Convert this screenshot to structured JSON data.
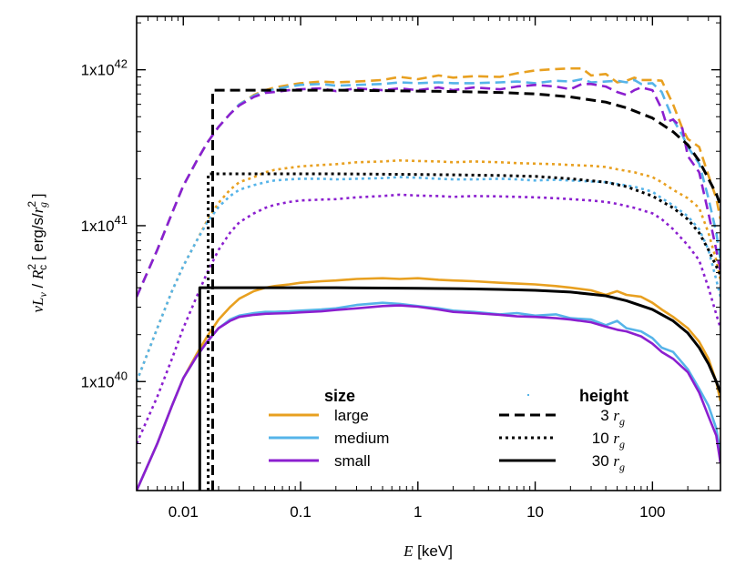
{
  "chart_data": {
    "type": "line",
    "xlabel": {
      "italic": "E",
      "rest": " [keV]"
    },
    "ylabel": {
      "nu": "ν",
      "L": "L",
      "Lsub": "ν",
      "slash": " / ",
      "R": "R",
      "Rsup": "2",
      "Rsub": "c",
      "bracket_open": "  [ erg/s/",
      "r": "r",
      "rsup": "2",
      "rsub": "g",
      "bracket_close": " ]"
    },
    "xscale": "log",
    "yscale": "log",
    "xlim": [
      0.004,
      380
    ],
    "ylim": [
      2e+39,
      2.2e+42
    ],
    "x_ticks": [
      {
        "value": 0.01,
        "label": "0.01"
      },
      {
        "value": 0.1,
        "label": "0.1"
      },
      {
        "value": 1,
        "label": "1"
      },
      {
        "value": 10,
        "label": "10"
      },
      {
        "value": 100,
        "label": "100"
      }
    ],
    "y_ticks": [
      {
        "value": 1e+40,
        "base": "1x10",
        "exp": "40"
      },
      {
        "value": 1e+41,
        "base": "1x10",
        "exp": "41"
      },
      {
        "value": 1e+42,
        "base": "1x10",
        "exp": "42"
      }
    ],
    "grid": false,
    "legend": {
      "placement": "bottom-center",
      "size_title": "size",
      "height_title": "height",
      "size_items": [
        {
          "label": "large",
          "color": "#e8a020"
        },
        {
          "label": "medium",
          "color": "#56b4e9"
        },
        {
          "label": "small",
          "color": "#8b1fcf"
        }
      ],
      "height_items": [
        {
          "num": "3",
          "r": "r",
          "sub": "g",
          "dash": "dashed"
        },
        {
          "num": "10",
          "r": "r",
          "sub": "g",
          "dash": "dotted"
        },
        {
          "num": "30",
          "r": "r",
          "sub": "g",
          "dash": "solid"
        }
      ]
    },
    "series": [
      {
        "size": "large",
        "height": "3 rg",
        "color": "#e8a020",
        "dash": "dashed",
        "x": [
          0.004,
          0.006,
          0.008,
          0.01,
          0.013,
          0.016,
          0.02,
          0.025,
          0.03,
          0.04,
          0.05,
          0.06,
          0.08,
          0.1,
          0.15,
          0.2,
          0.3,
          0.5,
          0.7,
          1,
          1.5,
          2,
          3,
          5,
          7,
          10,
          15,
          20,
          25,
          30,
          40,
          50,
          60,
          70,
          80,
          100,
          120,
          130,
          150,
          180,
          200,
          250,
          300,
          350,
          380
        ],
        "y": [
          3.5e+40,
          7e+40,
          1.2e+41,
          1.8e+41,
          2.6e+41,
          3.4e+41,
          4.3e+41,
          5.2e+41,
          6e+41,
          6.9e+41,
          7.4e+41,
          7.7e+41,
          8e+41,
          8.2e+41,
          8.4e+41,
          8.3e+41,
          8.4e+41,
          8.6e+41,
          9e+41,
          8.7e+41,
          9.2e+41,
          8.9e+41,
          9.1e+41,
          9e+41,
          9.5e+41,
          9.9e+41,
          1.01e+42,
          1.02e+42,
          1.02e+42,
          9.2e+41,
          9.4e+41,
          8.3e+41,
          8.5e+41,
          8.9e+41,
          8.6e+41,
          8.6e+41,
          8.5e+41,
          7.5e+41,
          6e+41,
          4.2e+41,
          3.6e+41,
          3.2e+41,
          2.1e+41,
          1.5e+41,
          1.1e+41
        ]
      },
      {
        "size": "medium",
        "height": "3 rg",
        "color": "#56b4e9",
        "dash": "dashed",
        "x": [
          0.004,
          0.006,
          0.008,
          0.01,
          0.013,
          0.016,
          0.02,
          0.025,
          0.03,
          0.04,
          0.05,
          0.06,
          0.08,
          0.1,
          0.15,
          0.2,
          0.3,
          0.5,
          0.7,
          1,
          1.5,
          2,
          3,
          5,
          7,
          10,
          15,
          20,
          25,
          30,
          40,
          50,
          60,
          70,
          80,
          100,
          120,
          130,
          150,
          180,
          200,
          250,
          300,
          350,
          380
        ],
        "y": [
          3.5e+40,
          7e+40,
          1.2e+41,
          1.8e+41,
          2.6e+41,
          3.4e+41,
          4.3e+41,
          5.2e+41,
          6e+41,
          6.8e+41,
          7.3e+41,
          7.5e+41,
          7.8e+41,
          8e+41,
          8.1e+41,
          7.9e+41,
          8e+41,
          8.1e+41,
          8.3e+41,
          8.2e+41,
          8.3e+41,
          8.2e+41,
          8.2e+41,
          8.3e+41,
          8.4e+41,
          8.2e+41,
          8.5e+41,
          8.4e+41,
          8.7e+41,
          8.3e+41,
          8.4e+41,
          8.5e+41,
          8.3e+41,
          8.6e+41,
          8.1e+41,
          8.2e+41,
          7.2e+41,
          6.2e+41,
          4.8e+41,
          3.8e+41,
          3.2e+41,
          2.5e+41,
          1.5e+41,
          9e+40,
          6e+40
        ]
      },
      {
        "size": "small",
        "height": "3 rg",
        "color": "#8b1fcf",
        "dash": "dashed",
        "x": [
          0.004,
          0.006,
          0.008,
          0.01,
          0.013,
          0.016,
          0.02,
          0.025,
          0.03,
          0.04,
          0.05,
          0.06,
          0.08,
          0.1,
          0.15,
          0.2,
          0.3,
          0.5,
          0.7,
          1,
          1.5,
          2,
          3,
          5,
          7,
          10,
          15,
          20,
          25,
          30,
          40,
          50,
          60,
          70,
          80,
          100,
          120,
          130,
          150,
          180,
          200,
          250,
          300,
          350,
          380
        ],
        "y": [
          3.5e+40,
          7e+40,
          1.2e+41,
          1.8e+41,
          2.6e+41,
          3.4e+41,
          4.3e+41,
          5.2e+41,
          5.9e+41,
          6.7e+41,
          7.1e+41,
          7.2e+41,
          7.4e+41,
          7.5e+41,
          7.6e+41,
          7.3e+41,
          7.6e+41,
          7.4e+41,
          7.6e+41,
          7.4e+41,
          7.7e+41,
          7.4e+41,
          7.7e+41,
          7.5e+41,
          7.8e+41,
          8e+41,
          7.8e+41,
          7.5e+41,
          8.1e+41,
          8.1e+41,
          7.8e+41,
          7.2e+41,
          6.9e+41,
          7.4e+41,
          7.7e+41,
          7.4e+41,
          5.6e+41,
          4.6e+41,
          4.8e+41,
          4.2e+41,
          2.8e+41,
          2.2e+41,
          1.2e+41,
          7e+40,
          5e+40
        ]
      },
      {
        "size": "large",
        "height": "10 rg",
        "color": "#e8a020",
        "dash": "dotted",
        "x": [
          0.004,
          0.006,
          0.008,
          0.01,
          0.013,
          0.016,
          0.02,
          0.025,
          0.03,
          0.04,
          0.05,
          0.06,
          0.08,
          0.1,
          0.15,
          0.2,
          0.3,
          0.5,
          0.7,
          1,
          1.5,
          2,
          3,
          5,
          7,
          10,
          15,
          20,
          30,
          40,
          50,
          70,
          100,
          120,
          150,
          200,
          250,
          300,
          350,
          380
        ],
        "y": [
          1e+40,
          2.2e+40,
          3.8e+40,
          5.5e+40,
          8e+40,
          1.08e+41,
          1.4e+41,
          1.7e+41,
          1.9e+41,
          2.05e+41,
          2.2e+41,
          2.28e+41,
          2.35e+41,
          2.4e+41,
          2.45e+41,
          2.48e+41,
          2.55e+41,
          2.58e+41,
          2.62e+41,
          2.6e+41,
          2.58e+41,
          2.55e+41,
          2.58e+41,
          2.55e+41,
          2.52e+41,
          2.5e+41,
          2.48e+41,
          2.45e+41,
          2.42e+41,
          2.38e+41,
          2.3e+41,
          2.2e+41,
          2.05e+41,
          1.9e+41,
          1.7e+41,
          1.5e+41,
          1.3e+41,
          9e+40,
          6e+40,
          4.5e+40
        ]
      },
      {
        "size": "medium",
        "height": "10 rg",
        "color": "#56b4e9",
        "dash": "dotted",
        "x": [
          0.004,
          0.006,
          0.008,
          0.01,
          0.013,
          0.016,
          0.02,
          0.025,
          0.03,
          0.04,
          0.05,
          0.06,
          0.08,
          0.1,
          0.15,
          0.2,
          0.3,
          0.5,
          0.7,
          1,
          1.5,
          2,
          3,
          5,
          7,
          10,
          15,
          20,
          30,
          40,
          50,
          70,
          100,
          120,
          150,
          200,
          250,
          300,
          350,
          380
        ],
        "y": [
          1e+40,
          2.2e+40,
          3.8e+40,
          5.5e+40,
          8e+40,
          1.05e+41,
          1.32e+41,
          1.55e+41,
          1.7e+41,
          1.82e+41,
          1.9e+41,
          1.95e+41,
          1.98e+41,
          2e+41,
          2e+41,
          1.98e+41,
          2e+41,
          2.02e+41,
          2.05e+41,
          2.03e+41,
          2e+41,
          1.98e+41,
          1.98e+41,
          2e+41,
          1.98e+41,
          1.95e+41,
          1.97e+41,
          1.95e+41,
          1.92e+41,
          1.9e+41,
          1.85e+41,
          1.78e+41,
          1.65e+41,
          1.5e+41,
          1.35e+41,
          1.15e+41,
          9.5e+40,
          7e+40,
          4.5e+40,
          3.5e+40
        ]
      },
      {
        "size": "small",
        "height": "10 rg",
        "color": "#8b1fcf",
        "dash": "dotted",
        "x": [
          0.004,
          0.006,
          0.008,
          0.01,
          0.013,
          0.016,
          0.02,
          0.025,
          0.03,
          0.04,
          0.05,
          0.06,
          0.08,
          0.1,
          0.15,
          0.2,
          0.3,
          0.5,
          0.7,
          1,
          1.5,
          2,
          3,
          5,
          7,
          10,
          15,
          20,
          30,
          40,
          50,
          70,
          100,
          120,
          150,
          200,
          250,
          300,
          350,
          380
        ],
        "y": [
          4e+39,
          8e+39,
          1.4e+40,
          2.2e+40,
          3.5e+40,
          5e+40,
          7e+40,
          9e+40,
          1.05e+41,
          1.2e+41,
          1.3e+41,
          1.36e+41,
          1.42e+41,
          1.45e+41,
          1.47e+41,
          1.48e+41,
          1.52e+41,
          1.55e+41,
          1.58e+41,
          1.56e+41,
          1.55e+41,
          1.53e+41,
          1.55e+41,
          1.54e+41,
          1.53e+41,
          1.52e+41,
          1.5e+41,
          1.48e+41,
          1.45e+41,
          1.42e+41,
          1.38e+41,
          1.3e+41,
          1.2e+41,
          1.1e+41,
          9.5e+40,
          7.5e+40,
          6e+40,
          4e+40,
          2.7e+40,
          2.2e+40
        ]
      },
      {
        "size": "large",
        "height": "30 rg",
        "color": "#e8a020",
        "dash": "solid",
        "x": [
          0.004,
          0.006,
          0.008,
          0.01,
          0.013,
          0.016,
          0.02,
          0.025,
          0.03,
          0.04,
          0.05,
          0.06,
          0.08,
          0.1,
          0.15,
          0.2,
          0.3,
          0.5,
          0.7,
          1,
          1.5,
          2,
          3,
          5,
          7,
          10,
          15,
          20,
          30,
          40,
          50,
          60,
          80,
          100,
          120,
          150,
          200,
          250,
          300,
          350,
          380
        ],
        "y": [
          2e+39,
          4e+39,
          7e+39,
          1.05e+40,
          1.5e+40,
          1.95e+40,
          2.5e+40,
          3e+40,
          3.4e+40,
          3.8e+40,
          4e+40,
          4.1e+40,
          4.2e+40,
          4.3e+40,
          4.4e+40,
          4.45e+40,
          4.55e+40,
          4.6e+40,
          4.55e+40,
          4.6e+40,
          4.5e+40,
          4.45e+40,
          4.4e+40,
          4.3e+40,
          4.25e+40,
          4.2e+40,
          4.1e+40,
          4e+40,
          3.85e+40,
          3.6e+40,
          3.8e+40,
          3.6e+40,
          3.5e+40,
          3.2e+40,
          2.9e+40,
          2.6e+40,
          2.2e+40,
          1.8e+40,
          1.4e+40,
          1e+40,
          7.5e+39
        ]
      },
      {
        "size": "medium",
        "height": "30 rg",
        "color": "#56b4e9",
        "dash": "solid",
        "x": [
          0.004,
          0.006,
          0.008,
          0.01,
          0.013,
          0.016,
          0.02,
          0.025,
          0.03,
          0.04,
          0.05,
          0.06,
          0.08,
          0.1,
          0.15,
          0.2,
          0.3,
          0.5,
          0.7,
          1,
          1.5,
          2,
          3,
          5,
          7,
          10,
          15,
          20,
          30,
          40,
          50,
          60,
          80,
          100,
          120,
          150,
          200,
          250,
          300,
          350,
          380
        ],
        "y": [
          2e+39,
          4e+39,
          7e+39,
          1.05e+40,
          1.45e+40,
          1.8e+40,
          2.2e+40,
          2.5e+40,
          2.65e+40,
          2.75e+40,
          2.8e+40,
          2.8e+40,
          2.82e+40,
          2.85e+40,
          2.9e+40,
          2.95e+40,
          3.1e+40,
          3.2e+40,
          3.15e+40,
          3.05e+40,
          2.95e+40,
          2.85e+40,
          2.8e+40,
          2.7e+40,
          2.75e+40,
          2.65e+40,
          2.7e+40,
          2.55e+40,
          2.5e+40,
          2.3e+40,
          2.45e+40,
          2.2e+40,
          2.1e+40,
          1.9e+40,
          1.65e+40,
          1.55e+40,
          1.2e+40,
          9e+39,
          7e+39,
          5e+39,
          3.5e+39
        ]
      },
      {
        "size": "small",
        "height": "30 rg",
        "color": "#8b1fcf",
        "dash": "solid",
        "x": [
          0.004,
          0.006,
          0.008,
          0.01,
          0.013,
          0.016,
          0.02,
          0.025,
          0.03,
          0.04,
          0.05,
          0.06,
          0.08,
          0.1,
          0.15,
          0.2,
          0.3,
          0.5,
          0.7,
          1,
          1.5,
          2,
          3,
          5,
          7,
          10,
          15,
          20,
          30,
          40,
          50,
          60,
          80,
          100,
          120,
          150,
          200,
          250,
          300,
          350,
          380
        ],
        "y": [
          2e+39,
          4e+39,
          7e+39,
          1.05e+40,
          1.45e+40,
          1.8e+40,
          2.2e+40,
          2.45e+40,
          2.6e+40,
          2.68e+40,
          2.72e+40,
          2.73e+40,
          2.75e+40,
          2.78e+40,
          2.82e+40,
          2.88e+40,
          2.95e+40,
          3.05e+40,
          3.08e+40,
          3.02e+40,
          2.9e+40,
          2.8e+40,
          2.75e+40,
          2.68e+40,
          2.62e+40,
          2.6e+40,
          2.55e+40,
          2.5e+40,
          2.4e+40,
          2.25e+40,
          2.15e+40,
          2.1e+40,
          1.95e+40,
          1.75e+40,
          1.55e+40,
          1.4e+40,
          1.15e+40,
          8.5e+39,
          6e+39,
          4.5e+39,
          3e+39
        ]
      },
      {
        "size": "none",
        "height": "3 rg",
        "color": "#000000",
        "dash": "dashed",
        "x": [
          0.0178,
          0.0178,
          0.03,
          0.05,
          0.1,
          0.2,
          0.5,
          1,
          2,
          5,
          10,
          20,
          40,
          60,
          100,
          150,
          200,
          250,
          300,
          350,
          380
        ],
        "y": [
          2e+39,
          7.4e+41,
          7.4e+41,
          7.4e+41,
          7.4e+41,
          7.4e+41,
          7.35e+41,
          7.3e+41,
          7.25e+41,
          7.15e+41,
          7e+41,
          6.7e+41,
          6.2e+41,
          5.7e+41,
          4.9e+41,
          4e+41,
          3.3e+41,
          2.6e+41,
          2e+41,
          1.6e+41,
          1.35e+41
        ]
      },
      {
        "size": "none",
        "height": "10 rg",
        "color": "#000000",
        "dash": "dotted",
        "x": [
          0.0163,
          0.0163,
          0.03,
          0.05,
          0.1,
          0.2,
          0.5,
          1,
          2,
          5,
          10,
          20,
          40,
          60,
          100,
          150,
          200,
          250,
          300,
          350,
          380
        ],
        "y": [
          2e+39,
          2.15e+41,
          2.15e+41,
          2.15e+41,
          2.15e+41,
          2.15e+41,
          2.14e+41,
          2.13e+41,
          2.12e+41,
          2.1e+41,
          2.07e+41,
          2e+41,
          1.9e+41,
          1.78e+41,
          1.55e+41,
          1.3e+41,
          1.1e+41,
          9e+40,
          7e+40,
          5.5e+40,
          4.8e+40
        ]
      },
      {
        "size": "none",
        "height": "30 rg",
        "color": "#000000",
        "dash": "solid",
        "x": [
          0.0138,
          0.0138,
          0.03,
          0.05,
          0.1,
          0.2,
          0.5,
          1,
          2,
          5,
          10,
          20,
          40,
          60,
          100,
          150,
          200,
          250,
          300,
          350,
          380
        ],
        "y": [
          2e+39,
          4e+40,
          4e+40,
          4e+40,
          4e+40,
          4e+40,
          3.98e+40,
          3.97e+40,
          3.95e+40,
          3.9e+40,
          3.85e+40,
          3.75e+40,
          3.55e+40,
          3.3e+40,
          2.9e+40,
          2.45e+40,
          2.05e+40,
          1.65e+40,
          1.3e+40,
          1e+40,
          8.5e+39
        ]
      }
    ]
  }
}
